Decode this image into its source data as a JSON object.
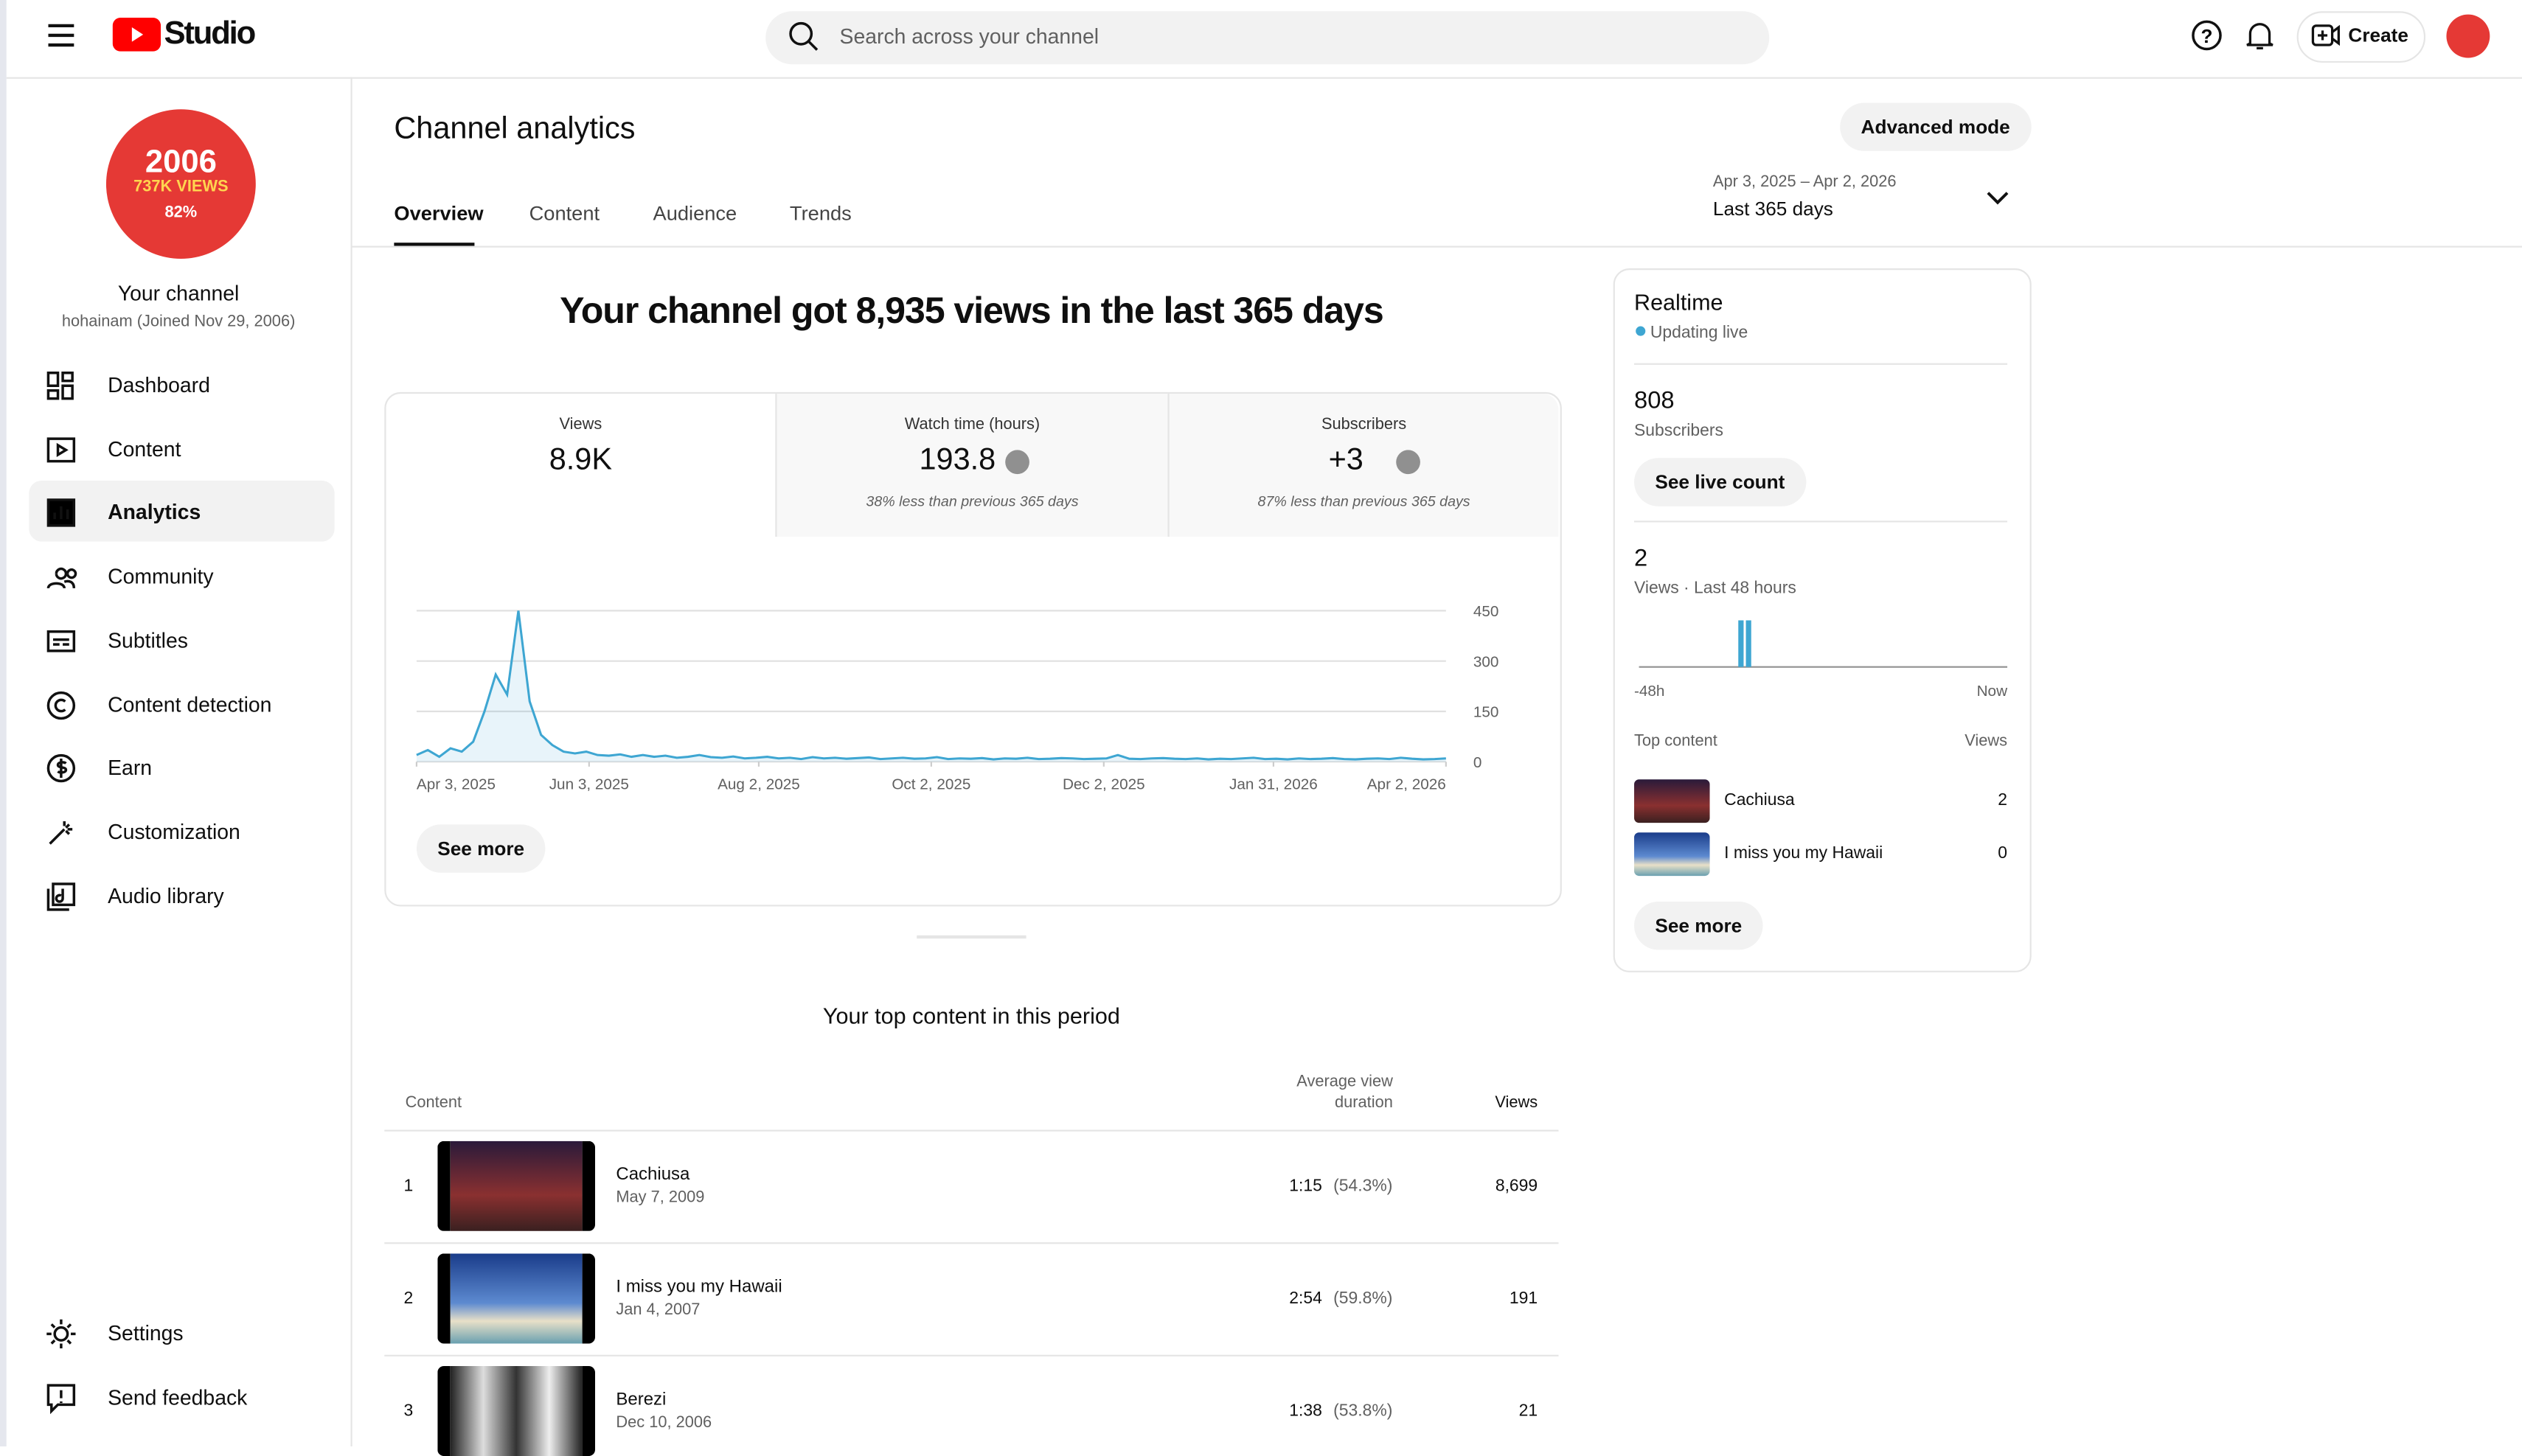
{
  "header": {
    "logo": "Studio",
    "search_placeholder": "Search across your channel",
    "create": "Create"
  },
  "sidebar": {
    "avatar": [
      "2006",
      "737K VIEWS",
      "82%"
    ],
    "channel_name": "Your channel",
    "handle": "hohainam (Joined Nov 29, 2006)",
    "nav": [
      "Dashboard",
      "Content",
      "Analytics",
      "Community",
      "Subtitles",
      "Content detection",
      "Earn",
      "Customization",
      "Audio library"
    ],
    "bottom": [
      "Settings",
      "Send feedback"
    ]
  },
  "page": {
    "title": "Channel analytics",
    "advanced_mode": "Advanced mode",
    "tabs": [
      "Overview",
      "Content",
      "Audience",
      "Trends"
    ],
    "date_range": "Apr 3, 2025 – Apr 2, 2026",
    "date_label": "Last 365 days"
  },
  "headline": "Your channel got 8,935 views in the last 365 days",
  "metrics": [
    {
      "label": "Views",
      "value": "8.9K"
    },
    {
      "label": "Watch time (hours)",
      "value": "193.8",
      "note": "38% less than previous 365 days"
    },
    {
      "label": "Subscribers",
      "value": "+3",
      "note": "87% less than previous 365 days"
    }
  ],
  "chart_data": [
    {
      "type": "line",
      "color": "#3ea6d2",
      "values": [
        20,
        35,
        15,
        40,
        30,
        60,
        150,
        260,
        200,
        450,
        180,
        80,
        50,
        30,
        25,
        30,
        20,
        18,
        22,
        15,
        20,
        15,
        18,
        12,
        15,
        20,
        14,
        12,
        16,
        10,
        12,
        15,
        10,
        12,
        8,
        14,
        10,
        12,
        9,
        11,
        13,
        8,
        10,
        12,
        9,
        10,
        14,
        8,
        10,
        9,
        11,
        7,
        10,
        9,
        12,
        8,
        9,
        11,
        10,
        8,
        9,
        10,
        20,
        9,
        8,
        10,
        11,
        9,
        8,
        10,
        7,
        9,
        8,
        10,
        12,
        8,
        9,
        7,
        10,
        8,
        9,
        11,
        8,
        7,
        9,
        10,
        8,
        12,
        9,
        7,
        8,
        10
      ],
      "xlim": [
        0,
        91
      ],
      "xticks": [
        {
          "value": 0,
          "label": "Apr 3, 2025"
        },
        {
          "value": 15.25,
          "label": "Jun 3, 2025"
        },
        {
          "value": 30.25,
          "label": "Aug 2, 2025"
        },
        {
          "value": 45.5,
          "label": "Oct 2, 2025"
        },
        {
          "value": 60.75,
          "label": "Dec 2, 2025"
        },
        {
          "value": 75.75,
          "label": "Jan 31, 2026"
        },
        {
          "value": 91,
          "label": "Apr 2, 2026"
        }
      ],
      "ylim": [
        0,
        450
      ],
      "yticks": [
        0,
        150,
        300,
        450
      ],
      "grid": true
    },
    {
      "type": "bar",
      "color": "#3ea6d2",
      "values": [
        0,
        0,
        0,
        0,
        0,
        0,
        0,
        0,
        0,
        0,
        0,
        0,
        0,
        1,
        1,
        0,
        0,
        0,
        0,
        0,
        0,
        0,
        0,
        0,
        0,
        0,
        0,
        0,
        0,
        0,
        0,
        0,
        0,
        0,
        0,
        0,
        0,
        0,
        0,
        0,
        0,
        0,
        0,
        0,
        0,
        0,
        0,
        0
      ],
      "ylim": [
        0,
        1
      ],
      "xticks": [
        {
          "value": 0,
          "label": "-48h"
        },
        {
          "value": 47,
          "label": "Now"
        }
      ]
    }
  ],
  "see_more": "See more",
  "top_content": {
    "title": "Your top content in this period",
    "columns": [
      "Content",
      "Average view duration",
      "Views"
    ],
    "rows": [
      [
        "1",
        "Cachiusa",
        "May 7, 2009",
        "1:15",
        "(54.3%)",
        "8,699"
      ],
      [
        "2",
        "I miss you my Hawaii",
        "Jan 4, 2007",
        "2:54",
        "(59.8%)",
        "191"
      ],
      [
        "3",
        "Berezi",
        "Dec 10, 2006",
        "1:38",
        "(53.8%)",
        "21"
      ]
    ]
  },
  "realtime": {
    "title": "Realtime",
    "status": "Updating live",
    "subscribers": "808",
    "subscribers_label": "Subscribers",
    "see_live_count": "See live count",
    "views": "2",
    "views_label": "Views · Last 48 hours",
    "top_label": "Top content",
    "views_col": "Views",
    "rows": [
      [
        "Cachiusa",
        "2"
      ],
      [
        "I miss you my Hawaii",
        "0"
      ]
    ],
    "see_more": "See more"
  }
}
